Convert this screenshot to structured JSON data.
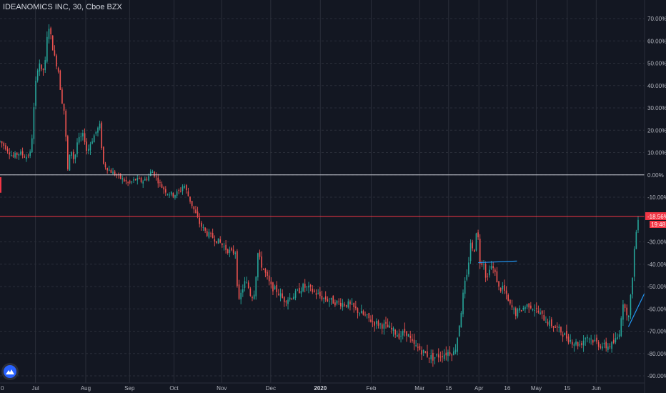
{
  "header": {
    "title": "IDEANOMICS INC, 30, Cboe BZX"
  },
  "colors": {
    "background": "#131722",
    "grid": "#2a2e39",
    "up": "#26a69a",
    "down": "#ef5350",
    "baseline": "#d1d4dc",
    "price_line": "#f23645",
    "trendline": "#2196f3"
  },
  "chart_data": {
    "type": "candlestick",
    "y_axis": {
      "unit": "%",
      "ylim": [
        -92,
        74
      ],
      "ticks": [
        "70.00%",
        "60.00%",
        "50.00%",
        "40.00%",
        "30.00%",
        "20.00%",
        "10.00%",
        "0.00%",
        "-10.00%",
        "-30.00%",
        "-40.00%",
        "-50.00%",
        "-60.00%",
        "-70.00%",
        "-80.00%",
        "-90.00%"
      ]
    },
    "x_axis": {
      "ticks": [
        {
          "label": "0",
          "t": 0
        },
        {
          "label": "Jul",
          "t": 0.055
        },
        {
          "label": "Aug",
          "t": 0.133
        },
        {
          "label": "Sep",
          "t": 0.201
        },
        {
          "label": "Oct",
          "t": 0.27
        },
        {
          "label": "Nov",
          "t": 0.344
        },
        {
          "label": "Dec",
          "t": 0.42
        },
        {
          "label": "2020",
          "t": 0.497,
          "bold": true
        },
        {
          "label": "Feb",
          "t": 0.576
        },
        {
          "label": "Mar",
          "t": 0.651
        },
        {
          "label": "16",
          "t": 0.696
        },
        {
          "label": "Apr",
          "t": 0.743
        },
        {
          "label": "16",
          "t": 0.787
        },
        {
          "label": "May",
          "t": 0.832
        },
        {
          "label": "15",
          "t": 0.88
        },
        {
          "label": "Jun",
          "t": 0.925
        }
      ]
    },
    "baseline_value": 0,
    "current": {
      "value": -18.56,
      "label": "-18.56%",
      "countdown": "19:48"
    },
    "path_keypoints": [
      [
        0,
        15
      ],
      [
        0.01,
        12
      ],
      [
        0.02,
        8
      ],
      [
        0.03,
        10
      ],
      [
        0.04,
        8
      ],
      [
        0.048,
        10
      ],
      [
        0.055,
        40
      ],
      [
        0.06,
        52
      ],
      [
        0.065,
        45
      ],
      [
        0.07,
        50
      ],
      [
        0.075,
        68
      ],
      [
        0.08,
        60
      ],
      [
        0.085,
        52
      ],
      [
        0.09,
        48
      ],
      [
        0.095,
        35
      ],
      [
        0.1,
        28
      ],
      [
        0.105,
        2
      ],
      [
        0.11,
        12
      ],
      [
        0.115,
        6
      ],
      [
        0.12,
        15
      ],
      [
        0.13,
        18
      ],
      [
        0.135,
        10
      ],
      [
        0.14,
        14
      ],
      [
        0.15,
        20
      ],
      [
        0.155,
        22
      ],
      [
        0.16,
        5
      ],
      [
        0.17,
        2
      ],
      [
        0.18,
        0
      ],
      [
        0.19,
        -2
      ],
      [
        0.2,
        -4
      ],
      [
        0.21,
        -2
      ],
      [
        0.22,
        -3
      ],
      [
        0.23,
        -1
      ],
      [
        0.235,
        2
      ],
      [
        0.24,
        0
      ],
      [
        0.25,
        -5
      ],
      [
        0.26,
        -8
      ],
      [
        0.27,
        -9
      ],
      [
        0.28,
        -7
      ],
      [
        0.285,
        -4
      ],
      [
        0.29,
        -8
      ],
      [
        0.3,
        -15
      ],
      [
        0.31,
        -22
      ],
      [
        0.32,
        -26
      ],
      [
        0.33,
        -28
      ],
      [
        0.34,
        -30
      ],
      [
        0.35,
        -33
      ],
      [
        0.36,
        -35
      ],
      [
        0.365,
        -34
      ],
      [
        0.37,
        -58
      ],
      [
        0.375,
        -52
      ],
      [
        0.38,
        -48
      ],
      [
        0.385,
        -50
      ],
      [
        0.39,
        -55
      ],
      [
        0.395,
        -52
      ],
      [
        0.4,
        -35
      ],
      [
        0.405,
        -40
      ],
      [
        0.41,
        -43
      ],
      [
        0.42,
        -50
      ],
      [
        0.43,
        -52
      ],
      [
        0.44,
        -56
      ],
      [
        0.45,
        -55
      ],
      [
        0.46,
        -53
      ],
      [
        0.47,
        -50
      ],
      [
        0.48,
        -51
      ],
      [
        0.49,
        -53
      ],
      [
        0.5,
        -55
      ],
      [
        0.52,
        -57
      ],
      [
        0.54,
        -58
      ],
      [
        0.56,
        -62
      ],
      [
        0.58,
        -66
      ],
      [
        0.6,
        -68
      ],
      [
        0.62,
        -72
      ],
      [
        0.63,
        -70
      ],
      [
        0.64,
        -76
      ],
      [
        0.65,
        -78
      ],
      [
        0.66,
        -80
      ],
      [
        0.67,
        -82
      ],
      [
        0.68,
        -81
      ],
      [
        0.69,
        -80
      ],
      [
        0.7,
        -79
      ],
      [
        0.705,
        -80
      ],
      [
        0.71,
        -72
      ],
      [
        0.715,
        -62
      ],
      [
        0.72,
        -50
      ],
      [
        0.725,
        -45
      ],
      [
        0.73,
        -30
      ],
      [
        0.735,
        -36
      ],
      [
        0.74,
        -22
      ],
      [
        0.745,
        -40
      ],
      [
        0.75,
        -38
      ],
      [
        0.755,
        -48
      ],
      [
        0.76,
        -40
      ],
      [
        0.765,
        -42
      ],
      [
        0.77,
        -46
      ],
      [
        0.775,
        -52
      ],
      [
        0.78,
        -50
      ],
      [
        0.79,
        -58
      ],
      [
        0.8,
        -62
      ],
      [
        0.81,
        -60
      ],
      [
        0.82,
        -58
      ],
      [
        0.83,
        -60
      ],
      [
        0.84,
        -63
      ],
      [
        0.85,
        -66
      ],
      [
        0.86,
        -68
      ],
      [
        0.87,
        -70
      ],
      [
        0.88,
        -73
      ],
      [
        0.89,
        -75
      ],
      [
        0.9,
        -76
      ],
      [
        0.91,
        -72
      ],
      [
        0.92,
        -74
      ],
      [
        0.93,
        -76
      ],
      [
        0.94,
        -77
      ],
      [
        0.95,
        -76
      ],
      [
        0.96,
        -72
      ],
      [
        0.965,
        -60
      ],
      [
        0.97,
        -58
      ],
      [
        0.975,
        -65
      ],
      [
        0.98,
        -50
      ],
      [
        0.985,
        -30
      ],
      [
        0.99,
        -19
      ]
    ],
    "trendlines": [
      {
        "from": [
          0.742,
          -39.3
        ],
        "to": [
          0.802,
          -38.6
        ]
      },
      {
        "from": [
          0.975,
          -68
        ],
        "to": [
          1.0,
          -53
        ]
      }
    ]
  }
}
